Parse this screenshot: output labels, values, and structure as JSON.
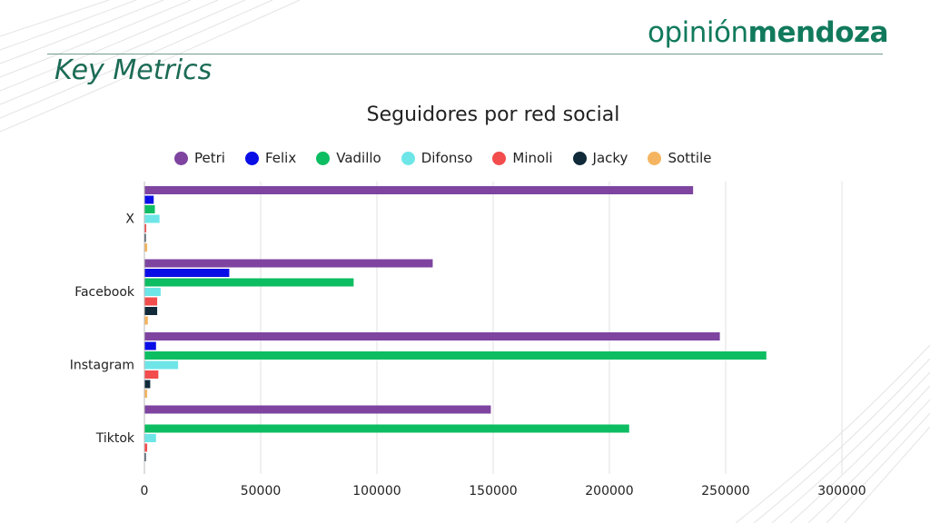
{
  "header": {
    "brand_light": "opinión",
    "brand_bold": "mendoza",
    "section_title": "Key Metrics"
  },
  "colors": {
    "brand": "#117a5c",
    "Petri": "#7e44a0",
    "Felix": "#0a0ee6",
    "Vadillo": "#0dbd62",
    "Difonso": "#6ee6e8",
    "Minoli": "#f24c4c",
    "Jacky": "#102a3a",
    "Sottile": "#f5b560"
  },
  "chart_data": {
    "type": "bar",
    "orientation": "horizontal",
    "title": "Seguidores por red social",
    "xlabel": "",
    "ylabel": "",
    "categories": [
      "X",
      "Facebook",
      "Instagram",
      "Tiktok"
    ],
    "xlim": [
      0,
      300000
    ],
    "x_ticks": [
      "0",
      "50000",
      "100000",
      "150000",
      "200000",
      "250000",
      "300000"
    ],
    "grid": "vertical",
    "legend_position": "top",
    "series": [
      {
        "name": "Petri",
        "values": [
          236000,
          124000,
          247500,
          149000
        ]
      },
      {
        "name": "Felix",
        "values": [
          4000,
          36500,
          5000,
          0
        ]
      },
      {
        "name": "Vadillo",
        "values": [
          4500,
          90000,
          267500,
          208500
        ]
      },
      {
        "name": "Difonso",
        "values": [
          6500,
          7000,
          14500,
          5000
        ]
      },
      {
        "name": "Minoli",
        "values": [
          800,
          5500,
          6000,
          1200
        ]
      },
      {
        "name": "Jacky",
        "values": [
          600,
          5500,
          2500,
          600
        ]
      },
      {
        "name": "Sottile",
        "values": [
          1200,
          1500,
          1200,
          0
        ]
      }
    ]
  }
}
